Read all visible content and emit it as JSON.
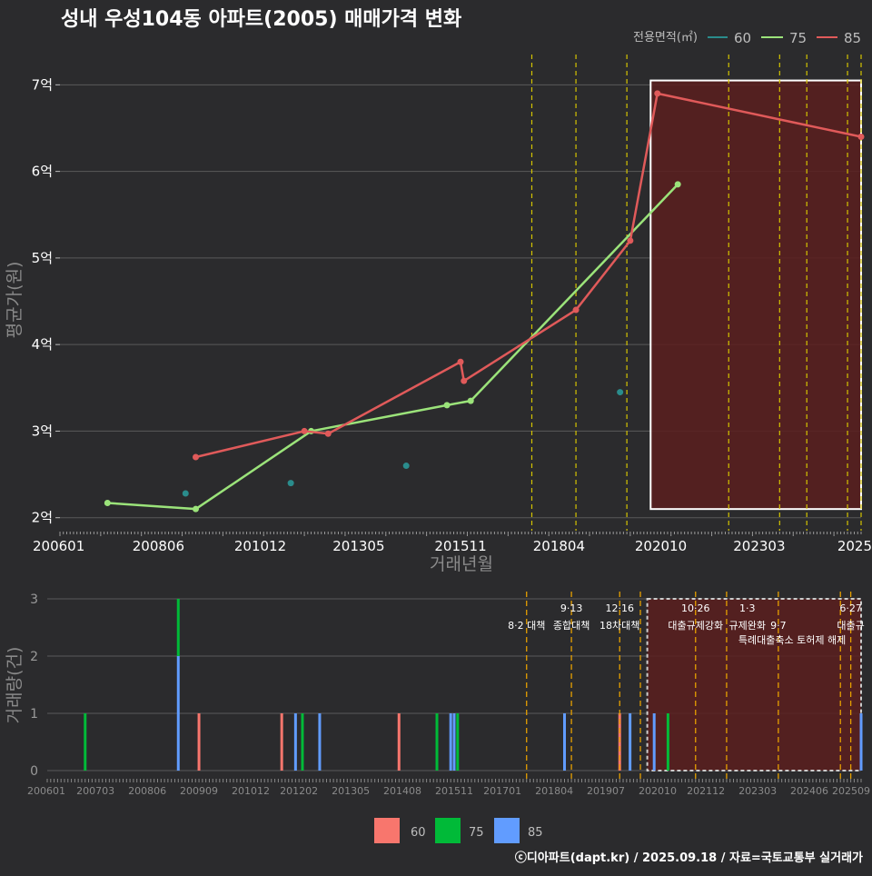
{
  "title": "성내 우성104동 아파트(2005) 매매가격 변화",
  "footer": "ⓒ디아파트(dapt.kr) / 2025.09.18 / 자료=국토교통부 실거래가",
  "colors": {
    "background": "#2b2b2d",
    "grid": "#5a5a5a",
    "s60": "#2a8c8c",
    "s75": "#9be37a",
    "s85": "#e05a5a",
    "bar60": "#f8766d",
    "bar75": "#00ba38",
    "bar85": "#619cff",
    "policy_top": "#d4c400",
    "policy_bottom": "#e6a000",
    "highlight_fill": "#5a1f1f"
  },
  "chart_data": [
    {
      "type": "line",
      "title": "성내 우성104동 아파트(2005) 매매가격 변화",
      "xlabel": "거래년월",
      "ylabel": "평균가(원)",
      "legend_title": "전용면적(㎡)",
      "legend_position": "top-right",
      "x_unit": "months since 2006-01",
      "xlim": [
        0,
        236
      ],
      "ylim": [
        1.85,
        7.35
      ],
      "x_ticks": [
        {
          "label": "200601",
          "x": 0
        },
        {
          "label": "200806",
          "x": 29
        },
        {
          "label": "201012",
          "x": 59
        },
        {
          "label": "201305",
          "x": 88
        },
        {
          "label": "201511",
          "x": 118
        },
        {
          "label": "201804",
          "x": 147
        },
        {
          "label": "202010",
          "x": 177
        },
        {
          "label": "202303",
          "x": 206
        },
        {
          "label": "2025",
          "x": 235
        }
      ],
      "y_ticks": [
        {
          "label": "2억",
          "value": 2
        },
        {
          "label": "3억",
          "value": 3
        },
        {
          "label": "4억",
          "value": 4
        },
        {
          "label": "5억",
          "value": 5
        },
        {
          "label": "6억",
          "value": 6
        },
        {
          "label": "7억",
          "value": 7
        }
      ],
      "series": [
        {
          "name": "60",
          "kind": "points",
          "points": [
            [
              37,
              2.28
            ],
            [
              68,
              2.4
            ],
            [
              102,
              2.6
            ],
            [
              165,
              3.45
            ]
          ]
        },
        {
          "name": "75",
          "kind": "line",
          "points": [
            [
              14,
              2.17
            ],
            [
              40,
              2.1
            ],
            [
              74,
              3.0
            ],
            [
              114,
              3.3
            ],
            [
              121,
              3.35
            ],
            [
              182,
              5.85
            ]
          ]
        },
        {
          "name": "85",
          "kind": "line",
          "points": [
            [
              40,
              2.7
            ],
            [
              72,
              3.0
            ],
            [
              79,
              2.97
            ],
            [
              118,
              3.8
            ],
            [
              119,
              3.58
            ],
            [
              152,
              4.4
            ],
            [
              168,
              5.2
            ],
            [
              176,
              6.9
            ],
            [
              236,
              6.4
            ]
          ]
        }
      ],
      "policy_lines_x": [
        139,
        152,
        167,
        197,
        212,
        220,
        232,
        236
      ],
      "highlight_range": {
        "x": [
          174,
          236
        ],
        "y": [
          2.1,
          7.05
        ]
      }
    },
    {
      "type": "bar",
      "ylabel": "거래량(건)",
      "xlim": [
        0,
        236
      ],
      "ylim": [
        0,
        3
      ],
      "y_ticks": [
        {
          "label": "0",
          "value": 0
        },
        {
          "label": "1",
          "value": 1
        },
        {
          "label": "2",
          "value": 2
        },
        {
          "label": "3",
          "value": 3
        }
      ],
      "x_ticks": [
        {
          "label": "200601",
          "x": 0
        },
        {
          "label": "200703",
          "x": 14
        },
        {
          "label": "200806",
          "x": 29
        },
        {
          "label": "200909",
          "x": 44
        },
        {
          "label": "201012",
          "x": 59
        },
        {
          "label": "201202",
          "x": 73
        },
        {
          "label": "201305",
          "x": 88
        },
        {
          "label": "201408",
          "x": 103
        },
        {
          "label": "201511",
          "x": 118
        },
        {
          "label": "201701",
          "x": 132
        },
        {
          "label": "201804",
          "x": 147
        },
        {
          "label": "201907",
          "x": 162
        },
        {
          "label": "202010",
          "x": 177
        },
        {
          "label": "202112",
          "x": 191
        },
        {
          "label": "202303",
          "x": 206
        },
        {
          "label": "202406",
          "x": 221
        },
        {
          "label": "202509",
          "x": 236
        }
      ],
      "bars": [
        {
          "x": 11,
          "bottom": 0,
          "top": 1,
          "series": "75"
        },
        {
          "x": 38,
          "bottom": 0,
          "top": 2,
          "series": "85"
        },
        {
          "x": 38,
          "bottom": 2,
          "top": 3,
          "series": "75"
        },
        {
          "x": 44,
          "bottom": 0,
          "top": 1,
          "series": "60"
        },
        {
          "x": 68,
          "bottom": 0,
          "top": 1,
          "series": "60"
        },
        {
          "x": 72,
          "bottom": 0,
          "top": 1,
          "series": "85"
        },
        {
          "x": 74,
          "bottom": 0,
          "top": 1,
          "series": "75"
        },
        {
          "x": 79,
          "bottom": 0,
          "top": 1,
          "series": "85"
        },
        {
          "x": 102,
          "bottom": 0,
          "top": 1,
          "series": "60"
        },
        {
          "x": 113,
          "bottom": 0,
          "top": 1,
          "series": "75"
        },
        {
          "x": 117,
          "bottom": 0,
          "top": 1,
          "series": "85"
        },
        {
          "x": 118,
          "bottom": 0,
          "top": 1,
          "series": "85"
        },
        {
          "x": 119,
          "bottom": 0,
          "top": 1,
          "series": "75"
        },
        {
          "x": 150,
          "bottom": 0,
          "top": 1,
          "series": "85"
        },
        {
          "x": 166,
          "bottom": 0,
          "top": 1,
          "series": "60"
        },
        {
          "x": 169,
          "bottom": 0,
          "top": 1,
          "series": "85"
        },
        {
          "x": 176,
          "bottom": 0,
          "top": 1,
          "series": "85"
        },
        {
          "x": 180,
          "bottom": 0,
          "top": 1,
          "series": "75"
        },
        {
          "x": 236,
          "bottom": 0,
          "top": 1,
          "series": "85"
        }
      ],
      "policy_lines_x": [
        139,
        152,
        166,
        172,
        188,
        197,
        212,
        230,
        233
      ],
      "highlight_range": {
        "x": [
          174,
          236
        ],
        "y": [
          0,
          3
        ]
      },
      "policy_labels": [
        {
          "text": "8·2 대책",
          "x": 139,
          "row": 1
        },
        {
          "text": "9·13",
          "x": 152,
          "row": 0
        },
        {
          "text": "종합대책",
          "x": 152,
          "row": 1
        },
        {
          "text": "12·16",
          "x": 166,
          "row": 0
        },
        {
          "text": "18차대책",
          "x": 166,
          "row": 1
        },
        {
          "text": "10·26",
          "x": 188,
          "row": 0
        },
        {
          "text": "대출규제강화",
          "x": 188,
          "row": 1
        },
        {
          "text": "1·3",
          "x": 203,
          "row": 0
        },
        {
          "text": "규제완화",
          "x": 203,
          "row": 1
        },
        {
          "text": "9·7",
          "x": 212,
          "row": 1
        },
        {
          "text": "특례대출축소 토허제 해제",
          "x": 216,
          "row": 2
        },
        {
          "text": "6·27",
          "x": 233,
          "row": 0
        },
        {
          "text": "대출규",
          "x": 233,
          "row": 1
        }
      ],
      "legend": [
        {
          "label": "60",
          "series": "60"
        },
        {
          "label": "75",
          "series": "75"
        },
        {
          "label": "85",
          "series": "85"
        }
      ]
    }
  ]
}
